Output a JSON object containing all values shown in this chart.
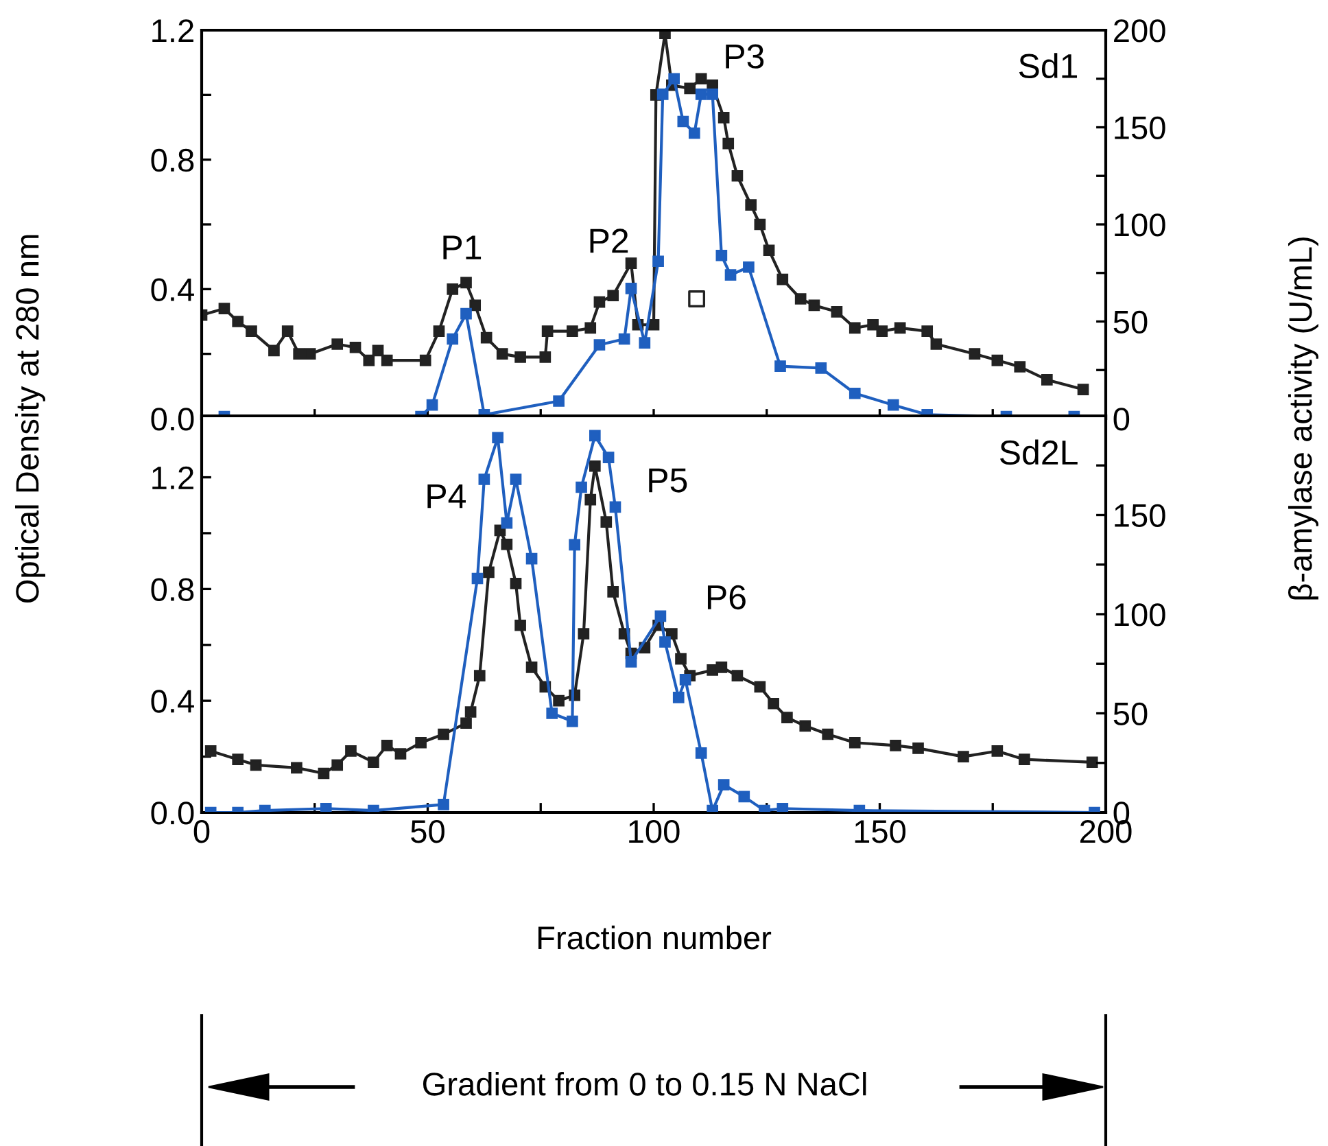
{
  "chart_data": [
    {
      "type": "line",
      "title": "Sd1",
      "ylabel": "Optical Density at 280 nm",
      "y2label": "β-amylase activity (U/mL)",
      "xlim": [
        0,
        200
      ],
      "xticks": [
        0,
        {
          "value": 25,
          "label": null
        },
        50,
        {
          "value": 75,
          "label": null
        },
        100,
        {
          "value": 125,
          "label": null
        },
        150,
        {
          "value": 175,
          "label": null
        },
        200
      ],
      "ylim": [
        0,
        1.2
      ],
      "yticks": [
        "0.0",
        {
          "value": 0.2,
          "label": null
        },
        0.4,
        {
          "value": 0.6,
          "label": null
        },
        0.8,
        {
          "value": 1.0,
          "label": null
        },
        1.2
      ],
      "y2lim": [
        0,
        200
      ],
      "y2ticks": [
        0,
        {
          "value": 25,
          "label": null
        },
        50,
        {
          "value": 75,
          "label": null
        },
        100,
        {
          "value": 125,
          "label": null
        },
        150,
        {
          "value": 175,
          "label": null
        },
        200
      ],
      "tick_labels": "y",
      "grid": false,
      "legend": false,
      "marker": "square",
      "line_style": "solid",
      "series": [
        {
          "color": "#222222",
          "x": [
            0,
            5,
            8,
            11,
            16,
            19,
            21.5,
            24,
            30,
            34,
            37,
            39,
            41,
            49.5,
            52.5,
            55.5,
            58.5,
            60.5,
            63,
            66.5,
            70.5,
            76,
            76.5,
            82,
            86,
            88,
            91,
            95,
            96.5,
            100,
            100.5,
            102.5,
            104,
            108,
            110.5,
            113,
            115.5,
            116.5,
            118.5,
            121.5,
            123.5,
            125.5,
            128.5,
            132.5,
            135.5,
            140.5,
            144.5,
            148.5,
            150.5,
            154.5,
            160.5,
            162.5,
            171,
            176,
            181,
            187,
            195
          ],
          "values": [
            0.32,
            0.34,
            0.3,
            0.27,
            0.21,
            0.27,
            0.2,
            0.2,
            0.23,
            0.22,
            0.18,
            0.21,
            0.18,
            0.18,
            0.27,
            0.4,
            0.42,
            0.35,
            0.25,
            0.2,
            0.19,
            0.19,
            0.27,
            0.27,
            0.28,
            0.36,
            0.38,
            0.48,
            0.29,
            0.29,
            1.0,
            1.19,
            1.03,
            1.02,
            1.05,
            1.03,
            0.93,
            0.85,
            0.75,
            0.66,
            0.6,
            0.52,
            0.43,
            0.37,
            0.35,
            0.33,
            0.28,
            0.29,
            0.27,
            0.28,
            0.27,
            0.23,
            0.2,
            0.18,
            0.16,
            0.12,
            0.09
          ]
        },
        {
          "color": "#1f5fbf",
          "axis": "y2",
          "x": [
            5,
            48.5,
            51,
            55.5,
            58.5,
            62.5,
            79,
            88,
            93.5,
            95,
            98,
            101,
            102,
            104.5,
            106.5,
            109,
            110.5,
            113,
            115,
            117,
            121,
            128,
            137,
            144.5,
            153,
            160.5,
            178,
            193
          ],
          "values": [
            1,
            1,
            7,
            41,
            54,
            2,
            9,
            38,
            41,
            67,
            39,
            81,
            167,
            175,
            153,
            147,
            167,
            167,
            84,
            74,
            78,
            27,
            26,
            13,
            7,
            2,
            1,
            1
          ]
        },
        {
          "type": "scatter",
          "color": "#222222",
          "x": [
            109.5
          ],
          "values": [
            0.37
          ]
        }
      ],
      "annotations": [
        "P1",
        "P2",
        "P3"
      ]
    },
    {
      "type": "line",
      "title": "Sd2L",
      "xlabel": "Fraction number",
      "xlim": [
        0,
        200
      ],
      "xticks": [
        0,
        {
          "value": 25,
          "label": null
        },
        50,
        {
          "value": 75,
          "label": null
        },
        100,
        {
          "value": 125,
          "label": null
        },
        150,
        {
          "value": 175,
          "label": null
        },
        200
      ],
      "ylim": [
        0,
        1.42
      ],
      "yticks": [
        "0.0",
        {
          "value": 0.2,
          "label": null
        },
        0.4,
        {
          "value": 0.6,
          "label": null
        },
        0.8,
        {
          "value": 1.0,
          "label": null
        },
        1.2
      ],
      "y2lim": [
        0,
        200
      ],
      "y2ticks": [
        0,
        {
          "value": 25,
          "label": null
        },
        50,
        {
          "value": 75,
          "label": null
        },
        100,
        {
          "value": 125,
          "label": null
        },
        150,
        {
          "value": 175,
          "label": null
        }
      ],
      "grid": false,
      "legend": false,
      "marker": "square",
      "line_style": "solid",
      "series": [
        {
          "color": "#222222",
          "x": [
            2,
            8,
            12,
            21,
            27,
            30,
            33,
            38,
            41,
            44,
            48.5,
            53.5,
            58.5,
            59.5,
            61.5,
            63.5,
            66,
            67.5,
            69.5,
            70.5,
            73,
            76,
            79,
            82.5,
            84.5,
            86,
            87,
            89.5,
            91,
            93.5,
            95,
            98,
            101,
            104,
            106,
            108,
            113,
            115,
            118.5,
            123.5,
            126.5,
            129.5,
            133.5,
            138.5,
            144.5,
            153.5,
            158.5,
            168.5,
            176,
            182,
            197
          ],
          "values": [
            0.22,
            0.19,
            0.17,
            0.16,
            0.14,
            0.17,
            0.22,
            0.18,
            0.24,
            0.21,
            0.25,
            0.28,
            0.32,
            0.36,
            0.49,
            0.86,
            1.01,
            0.96,
            0.82,
            0.67,
            0.52,
            0.45,
            0.4,
            0.42,
            0.64,
            1.12,
            1.24,
            1.04,
            0.79,
            0.64,
            0.57,
            0.59,
            0.67,
            0.64,
            0.55,
            0.49,
            0.51,
            0.52,
            0.49,
            0.45,
            0.39,
            0.34,
            0.31,
            0.28,
            0.25,
            0.24,
            0.23,
            0.2,
            0.22,
            0.19,
            0.18
          ]
        },
        {
          "color": "#1f5fbf",
          "axis": "y2",
          "x": [
            2,
            8,
            14,
            27.5,
            38,
            53.5,
            61,
            62.5,
            65.5,
            67.5,
            69.5,
            73,
            77.5,
            82,
            82.5,
            84,
            87,
            90,
            91.5,
            95,
            101.5,
            102.5,
            105.5,
            107,
            110.5,
            113,
            115.5,
            120,
            124.5,
            128.5,
            145.5,
            197.5
          ],
          "values": [
            0,
            0,
            1,
            2,
            1,
            4,
            118,
            168,
            189,
            146,
            168,
            128,
            50,
            46,
            135,
            164,
            190,
            179,
            154,
            76,
            99,
            86,
            58,
            67,
            30,
            1,
            14,
            8,
            1,
            2,
            1,
            0
          ]
        }
      ],
      "annotations": [
        "P4",
        "P5",
        "P6",
        "Gradient from 0 to 0.15 N NaCl"
      ]
    }
  ]
}
